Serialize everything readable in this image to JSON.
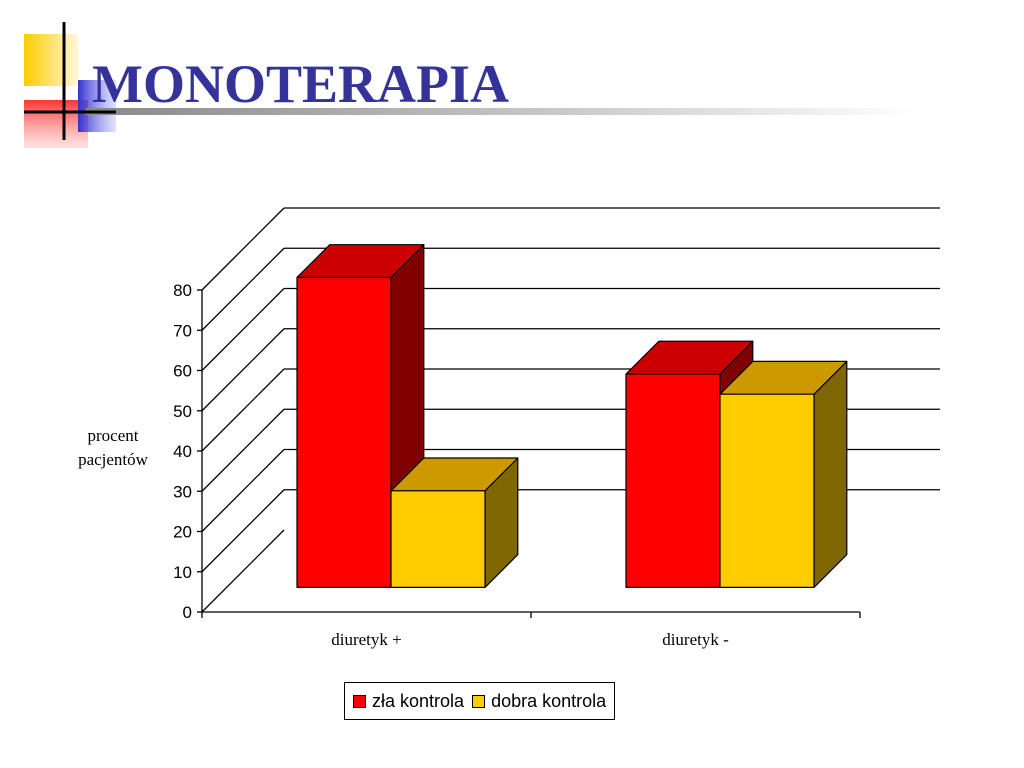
{
  "slide": {
    "title": "MONOTERAPIA"
  },
  "colors": {
    "title": "#333399",
    "deco_yellow": "#ffcc00",
    "deco_red": "#ff3333",
    "deco_blue": "#3333cc"
  },
  "chart_data": {
    "type": "bar",
    "style": "3d-clustered-column",
    "categories": [
      "diuretyk +",
      "diuretyk -"
    ],
    "series": [
      {
        "name": "zła kontrola",
        "values": [
          77,
          53
        ],
        "color": "#ff0000",
        "top_color": "#cc0000",
        "side_color": "#800000"
      },
      {
        "name": "dobra kontrola",
        "values": [
          24,
          48
        ],
        "color": "#ffcc00",
        "top_color": "#cc9900",
        "side_color": "#806600"
      }
    ],
    "ylabel": "procent pacjentów",
    "ylabel_lines": [
      "procent",
      "pacjentów"
    ],
    "xlabel": "",
    "ylim": [
      0,
      80
    ],
    "yticks": [
      "0",
      "10",
      "20",
      "30",
      "40",
      "50",
      "60",
      "70",
      "80"
    ],
    "grid": true,
    "legend": "bottom"
  }
}
